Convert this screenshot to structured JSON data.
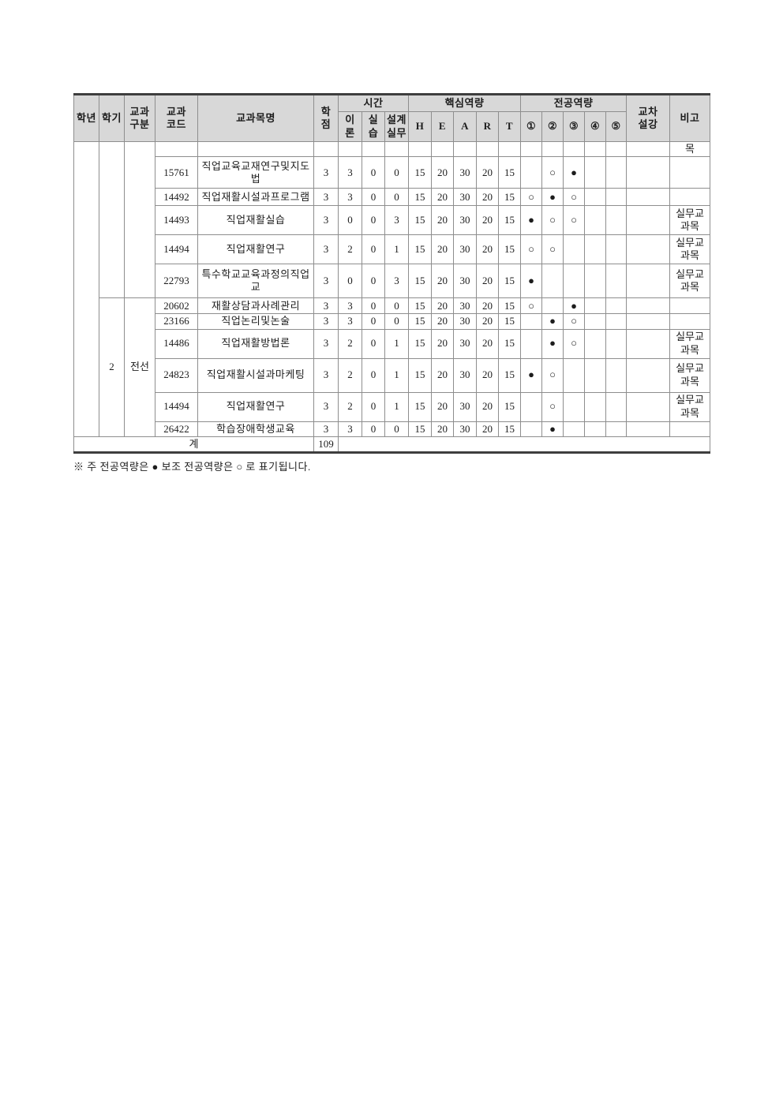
{
  "footnote": "※ 주 전공역량은 ● 보조 전공역량은 ○ 로 표기됩니다.",
  "table": {
    "header": {
      "grade": "학년",
      "semester": "학기",
      "category": "교과\n구분",
      "code": "교과\n코드",
      "course": "교과목명",
      "credit": "학\n점",
      "hours_group": "시간",
      "theory": "이\n론",
      "practice": "실\n습",
      "design": "설계\n실무",
      "core_group": "핵심역량",
      "core": [
        "H",
        "E",
        "A",
        "R",
        "T"
      ],
      "major_group": "전공역량",
      "major": [
        "①",
        "②",
        "③",
        "④",
        "⑤"
      ],
      "cross": "교차\n설강",
      "remark": "비고"
    },
    "groups": [
      {
        "semester": "",
        "category": ""
      },
      {
        "semester": "2",
        "category": "전선"
      }
    ],
    "rows": [
      {
        "code": "",
        "name": "",
        "credit": "",
        "theory": "",
        "practice": "",
        "design": "",
        "heart": [
          "",
          "",
          "",
          "",
          ""
        ],
        "major": [
          "",
          "",
          "",
          "",
          ""
        ],
        "cross": "",
        "remark": "목"
      },
      {
        "code": "15761",
        "name": "직업교육교재연구및지도법",
        "credit": "3",
        "theory": "3",
        "practice": "0",
        "design": "0",
        "heart": [
          "15",
          "20",
          "30",
          "20",
          "15"
        ],
        "major": [
          "",
          "○",
          "●",
          "",
          ""
        ],
        "cross": "",
        "remark": ""
      },
      {
        "code": "14492",
        "name": "직업재활시설과프로그램",
        "credit": "3",
        "theory": "3",
        "practice": "0",
        "design": "0",
        "heart": [
          "15",
          "20",
          "30",
          "20",
          "15"
        ],
        "major": [
          "○",
          "●",
          "○",
          "",
          ""
        ],
        "cross": "",
        "remark": ""
      },
      {
        "code": "14493",
        "name": "직업재활실습",
        "credit": "3",
        "theory": "0",
        "practice": "0",
        "design": "3",
        "heart": [
          "15",
          "20",
          "30",
          "20",
          "15"
        ],
        "major": [
          "●",
          "○",
          "○",
          "",
          ""
        ],
        "cross": "",
        "remark": "실무교과목"
      },
      {
        "code": "14494",
        "name": "직업재활연구",
        "credit": "3",
        "theory": "2",
        "practice": "0",
        "design": "1",
        "heart": [
          "15",
          "20",
          "30",
          "20",
          "15"
        ],
        "major": [
          "○",
          "○",
          "",
          "",
          ""
        ],
        "cross": "",
        "remark": "실무교과목"
      },
      {
        "code": "22793",
        "name": "특수학교교육과정의직업교",
        "credit": "3",
        "theory": "0",
        "practice": "0",
        "design": "3",
        "heart": [
          "15",
          "20",
          "30",
          "20",
          "15"
        ],
        "major": [
          "●",
          "",
          "",
          "",
          ""
        ],
        "cross": "",
        "remark": "실무교과목"
      },
      {
        "code": "20602",
        "name": "재활상담과사례관리",
        "credit": "3",
        "theory": "3",
        "practice": "0",
        "design": "0",
        "heart": [
          "15",
          "20",
          "30",
          "20",
          "15"
        ],
        "major": [
          "○",
          "",
          "●",
          "",
          ""
        ],
        "cross": "",
        "remark": ""
      },
      {
        "code": "23166",
        "name": "직업논리및논술",
        "credit": "3",
        "theory": "3",
        "practice": "0",
        "design": "0",
        "heart": [
          "15",
          "20",
          "30",
          "20",
          "15"
        ],
        "major": [
          "",
          "●",
          "○",
          "",
          ""
        ],
        "cross": "",
        "remark": ""
      },
      {
        "code": "14486",
        "name": "직업재활방법론",
        "credit": "3",
        "theory": "2",
        "practice": "0",
        "design": "1",
        "heart": [
          "15",
          "20",
          "30",
          "20",
          "15"
        ],
        "major": [
          "",
          "●",
          "○",
          "",
          ""
        ],
        "cross": "",
        "remark": "실무교과목"
      },
      {
        "code": "24823",
        "name": "직업재활시설과마케팅",
        "credit": "3",
        "theory": "2",
        "practice": "0",
        "design": "1",
        "heart": [
          "15",
          "20",
          "30",
          "20",
          "15"
        ],
        "major": [
          "●",
          "○",
          "",
          "",
          ""
        ],
        "cross": "",
        "remark": "실무교과목"
      },
      {
        "code": "14494",
        "name": "직업재활연구",
        "credit": "3",
        "theory": "2",
        "practice": "0",
        "design": "1",
        "heart": [
          "15",
          "20",
          "30",
          "20",
          "15"
        ],
        "major": [
          "",
          "○",
          "",
          "",
          ""
        ],
        "cross": "",
        "remark": "실무교과목"
      },
      {
        "code": "26422",
        "name": "학습장애학생교육",
        "credit": "3",
        "theory": "3",
        "practice": "0",
        "design": "0",
        "heart": [
          "15",
          "20",
          "30",
          "20",
          "15"
        ],
        "major": [
          "",
          "●",
          "",
          "",
          ""
        ],
        "cross": "",
        "remark": ""
      }
    ],
    "total": {
      "label": "계",
      "credit": "109"
    }
  }
}
